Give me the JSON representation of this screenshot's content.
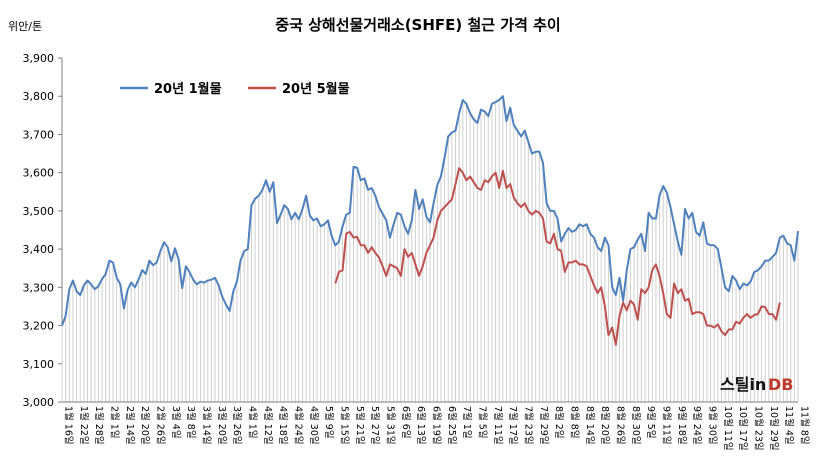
{
  "chart_data": {
    "type": "line",
    "title": "중국 상해선물거래소(SHFE) 철근 가격 추이",
    "unit_label": "위안/톤",
    "ylim": [
      3000,
      3900
    ],
    "yticks": [
      "3,000",
      "3,100",
      "3,200",
      "3,300",
      "3,400",
      "3,500",
      "3,600",
      "3,700",
      "3,800",
      "3,900"
    ],
    "x_labels": [
      "1월 16일",
      "1월 22일",
      "1월 28일",
      "2월 1일",
      "2월 14일",
      "2월 20일",
      "2월 26일",
      "3월 4일",
      "3월 8일",
      "3월 14일",
      "3월 20일",
      "3월 26일",
      "4월 1일",
      "4월 12일",
      "4월 18일",
      "4월 24일",
      "4월 30일",
      "5월 9일",
      "5월 15일",
      "5월 21일",
      "5월 27일",
      "5월 31일",
      "6월 6일",
      "6월 13일",
      "6월 19일",
      "6월 25일",
      "7월 1일",
      "7월 5일",
      "7월 11일",
      "7월 17일",
      "7월 23일",
      "7월 29일",
      "8월 2일",
      "8월 8일",
      "8월 14일",
      "8월 20일",
      "8월 26일",
      "8월 30일",
      "9월 5일",
      "9월 11일",
      "9월 18일",
      "9월 24일",
      "9월 30일",
      "10월 11일",
      "10월 17일",
      "10월 23일",
      "10월 29일",
      "11월 4일",
      "11월 8일"
    ],
    "grid": false,
    "legend": "top-left",
    "series": [
      {
        "name": "20년 1월물",
        "color": "#4f81bd",
        "start_index": 0,
        "values": [
          3200,
          3225,
          3295,
          3318,
          3290,
          3280,
          3305,
          3318,
          3308,
          3295,
          3303,
          3322,
          3335,
          3370,
          3365,
          3325,
          3308,
          3245,
          3293,
          3313,
          3300,
          3320,
          3345,
          3335,
          3370,
          3358,
          3365,
          3395,
          3418,
          3405,
          3368,
          3402,
          3373,
          3298,
          3355,
          3340,
          3320,
          3308,
          3315,
          3312,
          3318,
          3320,
          3325,
          3305,
          3275,
          3255,
          3238,
          3288,
          3315,
          3370,
          3395,
          3400,
          3515,
          3532,
          3540,
          3555,
          3580,
          3550,
          3575,
          3468,
          3490,
          3515,
          3505,
          3478,
          3495,
          3478,
          3505,
          3540,
          3488,
          3475,
          3480,
          3460,
          3465,
          3475,
          3435,
          3410,
          3420,
          3460,
          3490,
          3495,
          3615,
          3613,
          3580,
          3585,
          3555,
          3560,
          3540,
          3510,
          3493,
          3475,
          3430,
          3465,
          3495,
          3490,
          3460,
          3440,
          3475,
          3555,
          3505,
          3530,
          3485,
          3470,
          3520,
          3568,
          3590,
          3640,
          3695,
          3705,
          3710,
          3755,
          3790,
          3780,
          3755,
          3740,
          3730,
          3765,
          3760,
          3748,
          3780,
          3785,
          3790,
          3800,
          3735,
          3770,
          3725,
          3710,
          3695,
          3710,
          3680,
          3650,
          3655,
          3655,
          3625,
          3520,
          3500,
          3500,
          3480,
          3420,
          3440,
          3455,
          3445,
          3450,
          3465,
          3460,
          3465,
          3440,
          3430,
          3405,
          3395,
          3430,
          3410,
          3300,
          3280,
          3325,
          3265,
          3345,
          3400,
          3405,
          3425,
          3440,
          3395,
          3495,
          3480,
          3480,
          3540,
          3565,
          3548,
          3510,
          3465,
          3420,
          3385,
          3505,
          3480,
          3495,
          3445,
          3435,
          3470,
          3415,
          3410,
          3410,
          3400,
          3350,
          3300,
          3290,
          3330,
          3318,
          3295,
          3310,
          3305,
          3315,
          3340,
          3345,
          3355,
          3370,
          3370,
          3380,
          3390,
          3430,
          3435,
          3415,
          3410,
          3370,
          3447
        ]
      },
      {
        "name": "20년 5월물",
        "color": "#c0504d",
        "start_index": 75,
        "values": [
          3310,
          3340,
          3345,
          3440,
          3445,
          3430,
          3432,
          3410,
          3410,
          3390,
          3405,
          3390,
          3378,
          3355,
          3330,
          3360,
          3355,
          3350,
          3330,
          3400,
          3380,
          3390,
          3360,
          3330,
          3355,
          3390,
          3410,
          3430,
          3475,
          3500,
          3510,
          3520,
          3530,
          3570,
          3612,
          3600,
          3580,
          3590,
          3575,
          3560,
          3555,
          3580,
          3575,
          3590,
          3600,
          3560,
          3605,
          3560,
          3570,
          3535,
          3520,
          3510,
          3520,
          3500,
          3490,
          3500,
          3495,
          3480,
          3420,
          3415,
          3440,
          3400,
          3395,
          3340,
          3365,
          3365,
          3370,
          3360,
          3360,
          3355,
          3330,
          3305,
          3285,
          3300,
          3250,
          3175,
          3195,
          3150,
          3225,
          3260,
          3240,
          3265,
          3255,
          3215,
          3295,
          3285,
          3300,
          3345,
          3360,
          3330,
          3285,
          3230,
          3220,
          3310,
          3285,
          3295,
          3265,
          3270,
          3230,
          3235,
          3235,
          3230,
          3200,
          3200,
          3195,
          3203,
          3185,
          3175,
          3190,
          3190,
          3210,
          3205,
          3220,
          3230,
          3220,
          3228,
          3230,
          3250,
          3248,
          3230,
          3230,
          3215,
          3260
        ]
      }
    ]
  },
  "watermark": {
    "prefix": "스틸in",
    "suffix": "DB"
  }
}
